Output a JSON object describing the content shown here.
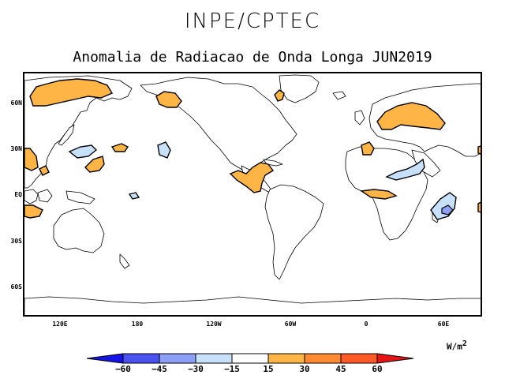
{
  "header": {
    "title": "INPE/CPTEC",
    "subtitle": "Anomalia de Radiacao de Onda Longa JUN2019"
  },
  "map": {
    "lat_labels": [
      "60N",
      "30N",
      "EQ",
      "30S",
      "60S"
    ],
    "lon_labels": [
      "120E",
      "180",
      "120W",
      "60W",
      "0",
      "60E"
    ]
  },
  "colorbar": {
    "units": "W/m",
    "units_exponent": "2",
    "labels": [
      "−60",
      "−45",
      "−30",
      "−15",
      "15",
      "30",
      "45",
      "60"
    ],
    "colors": [
      "#1414e6",
      "#4b50f0",
      "#8c9ef5",
      "#c8e1fa",
      "#ffffff",
      "#ffb446",
      "#ff8a32",
      "#ff5a28",
      "#e61414"
    ]
  }
}
